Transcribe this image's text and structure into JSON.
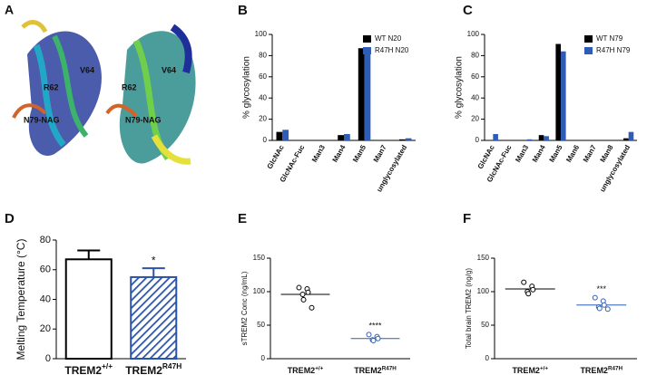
{
  "panel_labels": [
    "A",
    "B",
    "C",
    "D",
    "E",
    "F"
  ],
  "structure_labels": [
    "R62",
    "V64",
    "N79-NAG",
    "R62",
    "V64",
    "N79-NAG"
  ],
  "chart_data": [
    {
      "type": "grouped_bar",
      "y_label": "% glycosylation",
      "categories": [
        "GlcNAc",
        "GlcNAc-Fuc",
        "Man3",
        "Man4",
        "Man5",
        "Man7",
        "unglycosylated"
      ],
      "series": [
        {
          "name": "WT N20",
          "color": "#000000",
          "values": [
            8,
            0,
            0,
            5,
            87,
            0,
            1
          ]
        },
        {
          "name": "R47H N20",
          "color": "#2f5db5",
          "values": [
            10,
            0,
            0,
            6,
            85,
            0,
            2
          ]
        }
      ],
      "ylim": [
        0,
        100
      ],
      "yticks": [
        0,
        20,
        40,
        60,
        80,
        100
      ]
    },
    {
      "type": "grouped_bar",
      "y_label": "% glycosylation",
      "categories": [
        "GlcNAc",
        "GlcNAc-Fuc",
        "Man3",
        "Man4",
        "Man5",
        "Man6",
        "Man7",
        "Man8",
        "unglycosylated"
      ],
      "series": [
        {
          "name": "WT N79",
          "color": "#000000",
          "values": [
            0,
            0,
            0,
            5,
            91,
            0,
            0,
            0,
            2
          ]
        },
        {
          "name": "R47H N79",
          "color": "#2f5db5",
          "values": [
            6,
            0,
            1,
            4,
            84,
            0,
            0,
            0,
            8
          ]
        }
      ],
      "ylim": [
        0,
        100
      ],
      "yticks": [
        0,
        20,
        40,
        60,
        80,
        100
      ]
    },
    {
      "type": "bar",
      "y_label": "Melting Temperature (°C)",
      "categories": [
        "TREM2",
        "TREM2"
      ],
      "category_superscripts": [
        "+/+",
        "R47H"
      ],
      "values": [
        67,
        55
      ],
      "errors": [
        6,
        6
      ],
      "colors": [
        "#ffffff",
        "#2b53a7"
      ],
      "hatch": [
        false,
        true
      ],
      "annotations": [
        {
          "text": "*",
          "category": 1
        }
      ],
      "ylim": [
        0,
        80
      ],
      "yticks": [
        0,
        20,
        40,
        60,
        80
      ]
    },
    {
      "type": "dot",
      "y_label": "sTREM2 Conc (ng/mL)",
      "categories": [
        "TREM2",
        "TREM2"
      ],
      "category_superscripts": [
        "+/+",
        "R47H"
      ],
      "groups": [
        {
          "color": "#000000",
          "values": [
            106,
            104,
            99,
            96,
            88,
            76
          ],
          "mean": 96
        },
        {
          "color": "#2f5db5",
          "values": [
            36,
            33,
            30,
            28,
            27
          ],
          "mean": 30
        }
      ],
      "annotations": [
        {
          "text": "****",
          "category": 1
        }
      ],
      "ylim": [
        0,
        150
      ],
      "yticks": [
        0,
        50,
        100,
        150
      ]
    },
    {
      "type": "dot",
      "y_label": "Total brain TREM2 (ng/g)",
      "categories": [
        "TREM2",
        "TREM2"
      ],
      "category_superscripts": [
        "+/+",
        "R47H"
      ],
      "groups": [
        {
          "color": "#000000",
          "values": [
            114,
            108,
            103,
            100,
            97
          ],
          "mean": 104
        },
        {
          "color": "#2f5db5",
          "values": [
            91,
            86,
            80,
            77,
            75,
            74
          ],
          "mean": 80
        }
      ],
      "annotations": [
        {
          "text": "***",
          "category": 1
        }
      ],
      "ylim": [
        0,
        150
      ],
      "yticks": [
        0,
        50,
        100,
        150
      ]
    }
  ]
}
